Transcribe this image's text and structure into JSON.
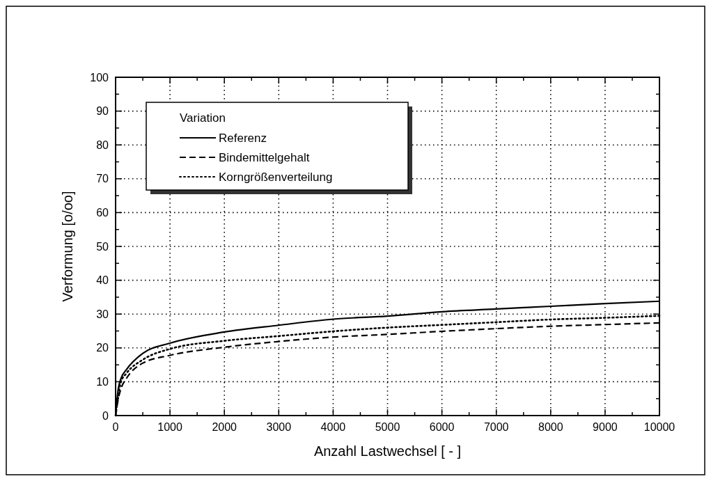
{
  "chart_data": {
    "type": "line",
    "xlabel": "Anzahl Lastwechsel [ - ]",
    "ylabel": "Verformung [o/oo]",
    "legend_title": "Variation",
    "legend": "top left",
    "grid": true,
    "marker": "none",
    "xlim": [
      0,
      10000
    ],
    "ylim": [
      0,
      100
    ],
    "xticks": [
      0,
      {
        "value": 500,
        "label": null
      },
      1000,
      {
        "value": 1500,
        "label": null
      },
      2000,
      {
        "value": 2500,
        "label": null
      },
      3000,
      {
        "value": 3500,
        "label": null
      },
      4000,
      {
        "value": 4500,
        "label": null
      },
      5000,
      {
        "value": 5500,
        "label": null
      },
      6000,
      {
        "value": 6500,
        "label": null
      },
      7000,
      {
        "value": 7500,
        "label": null
      },
      8000,
      {
        "value": 8500,
        "label": null
      },
      9000,
      {
        "value": 9500,
        "label": null
      },
      10000
    ],
    "yticks": [
      0,
      {
        "value": 5,
        "label": null
      },
      10,
      {
        "value": 15,
        "label": null
      },
      20,
      {
        "value": 25,
        "label": null
      },
      30,
      {
        "value": 35,
        "label": null
      },
      40,
      {
        "value": 45,
        "label": null
      },
      50,
      {
        "value": 55,
        "label": null
      },
      60,
      {
        "value": 65,
        "label": null
      },
      70,
      {
        "value": 75,
        "label": null
      },
      80,
      {
        "value": 85,
        "label": null
      },
      90,
      {
        "value": 95,
        "label": null
      },
      100
    ],
    "x": [
      0,
      50,
      100,
      200,
      500,
      1000,
      2000,
      3000,
      4000,
      5000,
      6000,
      7000,
      8000,
      9000,
      10000
    ],
    "series": [
      {
        "name": "Referenz",
        "color": "#000000",
        "line_style": "solid",
        "values": [
          0,
          8,
          11,
          13.6,
          18.4,
          21.4,
          24.7,
          26.7,
          28.5,
          29.4,
          30.7,
          31.5,
          32.3,
          33.1,
          33.8
        ]
      },
      {
        "name": "Bindemittelgehalt",
        "color": "#000000",
        "line_style": "dashed",
        "values": [
          0,
          5,
          8,
          11,
          15.5,
          17.8,
          20.2,
          21.9,
          23.2,
          24,
          24.9,
          25.7,
          26.4,
          26.9,
          27.4
        ]
      },
      {
        "name": "Korngrößenverteilung",
        "color": "#000000",
        "line_style": "dotted",
        "values": [
          0,
          6,
          10,
          12.5,
          16.5,
          19.7,
          22.1,
          23.5,
          24.9,
          26,
          26.8,
          27.6,
          28.4,
          28.9,
          29.5
        ]
      }
    ]
  }
}
